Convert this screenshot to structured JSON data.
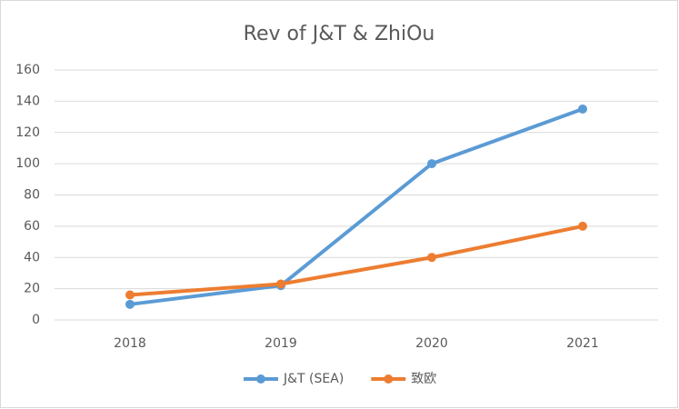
{
  "chart_data": {
    "type": "line",
    "title": "Rev of J&T & ZhiOu",
    "categories": [
      "2018",
      "2019",
      "2020",
      "2021"
    ],
    "series": [
      {
        "name": "J&T (SEA)",
        "color": "#5b9bd5",
        "values": [
          10,
          22,
          100,
          135
        ]
      },
      {
        "name": "致欧",
        "color": "#ed7d31",
        "values": [
          16,
          23,
          40,
          60
        ]
      }
    ],
    "ylim": [
      0,
      160
    ],
    "yticks": [
      0,
      20,
      40,
      60,
      80,
      100,
      120,
      140,
      160
    ],
    "grid": true,
    "legend": "bottom"
  }
}
